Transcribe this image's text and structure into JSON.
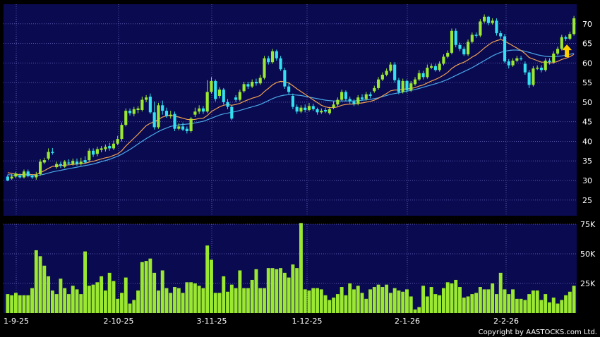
{
  "chart_data": [
    {
      "type": "candlestick",
      "ylim": [
        21,
        75
      ],
      "yticks": [
        25,
        30,
        35,
        40,
        45,
        50,
        55,
        60,
        65,
        70
      ],
      "grid": true,
      "x_labels": [
        "1-9-25",
        "2-10-25",
        "3-11-25",
        "1-12-25",
        "2-1-26",
        "2-2-26"
      ],
      "colors": {
        "up": "#9be830",
        "down": "#33e0f0",
        "ma_short": "#f0a050",
        "ma_long": "#4aa8e8",
        "background": "#0a0a50",
        "arrow": "#ffd000"
      },
      "candles": [
        [
          31,
          30,
          31.5,
          29.8
        ],
        [
          30.5,
          31,
          31.6,
          30.2
        ],
        [
          31,
          31.8,
          32.2,
          30.6
        ],
        [
          31.2,
          30.8,
          31.8,
          30.5
        ],
        [
          30.8,
          32.3,
          32.8,
          30.5
        ],
        [
          32.3,
          31.2,
          32.8,
          30.8
        ],
        [
          31.2,
          30.8,
          31.5,
          30.4
        ],
        [
          30.8,
          31.5,
          32.2,
          30.2
        ],
        [
          31.6,
          34.8,
          35.4,
          31.2
        ],
        [
          34.6,
          35.2,
          35.8,
          34.2
        ],
        [
          35.6,
          37.3,
          38.2,
          35.2
        ],
        [
          37.3,
          37.2,
          38.3,
          36.6
        ],
        [
          33.4,
          34.2,
          34.8,
          33.0
        ],
        [
          34.2,
          33.8,
          34.8,
          33.2
        ],
        [
          33.5,
          34.8,
          35.2,
          33.2
        ],
        [
          34.6,
          34.4,
          35.4,
          34.0
        ],
        [
          34.2,
          35.0,
          35.6,
          33.8
        ],
        [
          34.8,
          34.2,
          35.6,
          33.8
        ],
        [
          34.2,
          34.8,
          35.8,
          33.8
        ],
        [
          35.2,
          34.6,
          36.2,
          34.2
        ],
        [
          35.2,
          37.6,
          38.2,
          34.8
        ],
        [
          37.6,
          36.6,
          38.2,
          36.0
        ],
        [
          36.8,
          38.0,
          38.6,
          36.2
        ],
        [
          37.8,
          38.2,
          38.8,
          37.2
        ],
        [
          38.0,
          38.6,
          39.2,
          37.4
        ],
        [
          38.8,
          38.2,
          39.6,
          37.6
        ],
        [
          38.2,
          39.4,
          40.2,
          37.8
        ],
        [
          39.4,
          40.6,
          41.4,
          39.0
        ],
        [
          40.6,
          44.2,
          44.8,
          40.0
        ],
        [
          44.2,
          47.8,
          48.4,
          43.8
        ],
        [
          47.8,
          47.2,
          48.4,
          46.6
        ],
        [
          47.0,
          48.2,
          48.8,
          46.4
        ],
        [
          48.0,
          48.4,
          49.0,
          47.2
        ],
        [
          48.0,
          50.6,
          51.4,
          47.6
        ],
        [
          50.6,
          51.2,
          51.8,
          50.0
        ],
        [
          51.4,
          47.4,
          52.2,
          47.0
        ],
        [
          47.4,
          43.6,
          50.2,
          43.0
        ],
        [
          43.6,
          49.2,
          49.8,
          43.2
        ],
        [
          49.2,
          47.8,
          50.4,
          46.8
        ],
        [
          47.8,
          46.4,
          48.6,
          46.0
        ],
        [
          46.4,
          46.8,
          47.8,
          45.8
        ],
        [
          47.0,
          43.2,
          47.6,
          42.6
        ],
        [
          43.2,
          43.8,
          44.6,
          42.8
        ],
        [
          43.8,
          43.0,
          44.8,
          42.6
        ],
        [
          43.2,
          42.6,
          43.8,
          42.0
        ],
        [
          42.6,
          45.8,
          46.2,
          42.2
        ],
        [
          46.8,
          47.6,
          48.6,
          46.2
        ],
        [
          47.6,
          48.4,
          49.2,
          47.0
        ],
        [
          48.4,
          47.6,
          49.0,
          47.0
        ],
        [
          47.6,
          52.6,
          55.6,
          47.2
        ],
        [
          52.6,
          55.4,
          56.4,
          52.2
        ],
        [
          55.4,
          50.8,
          55.8,
          50.2
        ],
        [
          51.6,
          53.2,
          53.8,
          51.0
        ],
        [
          53.2,
          50.0,
          53.6,
          49.4
        ],
        [
          50.0,
          48.8,
          50.8,
          48.2
        ],
        [
          48.8,
          45.8,
          49.2,
          45.4
        ],
        [
          51.2,
          50.6,
          51.8,
          50.0
        ],
        [
          50.6,
          52.6,
          53.2,
          50.2
        ],
        [
          52.8,
          54.6,
          55.2,
          52.4
        ],
        [
          54.6,
          54.0,
          55.2,
          53.4
        ],
        [
          54.0,
          55.2,
          55.8,
          53.6
        ],
        [
          55.2,
          54.8,
          56.0,
          54.2
        ],
        [
          54.8,
          56.2,
          57.0,
          54.4
        ],
        [
          56.2,
          61.2,
          61.8,
          55.8
        ],
        [
          61.2,
          60.2,
          61.8,
          59.6
        ],
        [
          60.2,
          63.0,
          63.6,
          59.8
        ],
        [
          63.0,
          61.2,
          63.4,
          60.6
        ],
        [
          61.2,
          58.4,
          61.8,
          58.0
        ],
        [
          58.2,
          54.0,
          58.8,
          53.4
        ],
        [
          54.0,
          52.6,
          54.8,
          52.0
        ],
        [
          51.6,
          48.8,
          52.2,
          48.2
        ],
        [
          48.8,
          47.6,
          49.4,
          47.0
        ],
        [
          47.6,
          48.6,
          49.2,
          47.2
        ],
        [
          48.6,
          48.0,
          49.4,
          47.4
        ],
        [
          48.0,
          49.0,
          49.8,
          47.6
        ],
        [
          49.0,
          48.2,
          49.6,
          47.8
        ],
        [
          48.2,
          47.4,
          48.6,
          46.8
        ],
        [
          47.4,
          47.8,
          48.4,
          47.0
        ],
        [
          48.0,
          47.6,
          48.6,
          47.2
        ],
        [
          47.2,
          48.2,
          48.8,
          46.8
        ],
        [
          48.6,
          49.4,
          50.2,
          48.2
        ],
        [
          49.4,
          50.6,
          51.2,
          49.0
        ],
        [
          50.6,
          52.6,
          53.2,
          50.2
        ],
        [
          52.6,
          50.8,
          53.0,
          50.2
        ],
        [
          50.8,
          50.2,
          51.4,
          49.6
        ],
        [
          50.2,
          49.6,
          50.8,
          49.0
        ],
        [
          49.6,
          51.2,
          51.8,
          49.2
        ],
        [
          51.2,
          50.8,
          52.0,
          50.4
        ],
        [
          50.8,
          52.0,
          52.6,
          50.4
        ],
        [
          52.0,
          51.6,
          52.6,
          51.0
        ],
        [
          52.8,
          53.6,
          54.2,
          52.4
        ],
        [
          53.6,
          55.8,
          56.4,
          53.2
        ],
        [
          55.8,
          57.0,
          57.6,
          55.4
        ],
        [
          57.0,
          58.0,
          58.6,
          56.6
        ],
        [
          58.0,
          59.6,
          60.2,
          57.6
        ],
        [
          59.6,
          55.6,
          60.2,
          55.0
        ],
        [
          55.6,
          52.6,
          56.2,
          52.0
        ],
        [
          52.6,
          55.4,
          56.0,
          52.2
        ],
        [
          55.4,
          53.0,
          55.8,
          52.4
        ],
        [
          53.0,
          54.8,
          55.4,
          52.6
        ],
        [
          54.6,
          55.8,
          56.4,
          54.2
        ],
        [
          55.8,
          57.4,
          58.2,
          55.4
        ],
        [
          57.4,
          56.4,
          58.0,
          55.8
        ],
        [
          56.4,
          58.8,
          59.6,
          56.0
        ],
        [
          58.8,
          59.2,
          59.8,
          58.4
        ],
        [
          59.2,
          58.2,
          59.8,
          57.8
        ],
        [
          58.2,
          59.8,
          60.4,
          57.8
        ],
        [
          59.8,
          61.6,
          62.2,
          59.4
        ],
        [
          61.6,
          62.6,
          63.2,
          61.2
        ],
        [
          62.6,
          68.2,
          68.8,
          62.2
        ],
        [
          68.2,
          64.6,
          68.8,
          64.0
        ],
        [
          64.6,
          63.6,
          65.2,
          63.0
        ],
        [
          63.6,
          62.2,
          64.2,
          61.8
        ],
        [
          62.2,
          65.4,
          66.0,
          61.8
        ],
        [
          65.4,
          67.2,
          67.8,
          65.0
        ],
        [
          67.2,
          67.0,
          67.8,
          66.4
        ],
        [
          67.0,
          70.6,
          71.2,
          66.6
        ],
        [
          70.6,
          71.8,
          72.4,
          70.2
        ],
        [
          71.8,
          70.2,
          72.0,
          69.6
        ],
        [
          70.2,
          70.8,
          71.4,
          69.8
        ],
        [
          70.8,
          67.6,
          71.4,
          67.0
        ],
        [
          67.6,
          66.8,
          68.2,
          66.2
        ],
        [
          66.8,
          60.4,
          67.4,
          60.0
        ],
        [
          60.4,
          59.4,
          61.0,
          58.6
        ],
        [
          59.4,
          60.6,
          61.2,
          59.0
        ],
        [
          60.6,
          61.2,
          61.8,
          60.2
        ],
        [
          61.2,
          61.0,
          61.8,
          60.6
        ],
        [
          59.8,
          57.6,
          60.4,
          57.0
        ],
        [
          57.6,
          54.4,
          58.2,
          53.6
        ],
        [
          54.4,
          58.6,
          59.2,
          54.0
        ],
        [
          58.6,
          58.8,
          59.4,
          58.2
        ],
        [
          58.8,
          58.2,
          59.4,
          57.6
        ],
        [
          58.2,
          60.6,
          61.2,
          57.8
        ],
        [
          60.6,
          60.2,
          61.2,
          59.6
        ],
        [
          60.2,
          62.4,
          63.0,
          59.8
        ],
        [
          62.4,
          63.6,
          64.2,
          62.0
        ],
        [
          63.6,
          66.6,
          67.2,
          63.2
        ],
        [
          66.6,
          66.2,
          67.0,
          65.6
        ],
        [
          66.2,
          67.4,
          68.0,
          65.8
        ],
        [
          67.4,
          71.4,
          72.0,
          67.0
        ]
      ],
      "ma_short": [
        32,
        31.8,
        31.6,
        31.5,
        31.6,
        31.6,
        31.5,
        31.5,
        32.0,
        32.5,
        33.1,
        33.6,
        33.7,
        33.8,
        33.9,
        34.0,
        34.1,
        34.2,
        34.3,
        34.4,
        34.7,
        34.9,
        35.2,
        35.5,
        35.8,
        36.0,
        36.4,
        36.8,
        37.6,
        38.8,
        39.8,
        40.8,
        41.8,
        42.9,
        44.0,
        44.6,
        45.0,
        45.6,
        46.2,
        46.5,
        46.7,
        46.4,
        46.2,
        45.9,
        45.6,
        45.5,
        45.6,
        45.8,
        45.9,
        46.6,
        47.6,
        48.2,
        48.8,
        49.2,
        49.4,
        49.2,
        49.4,
        49.7,
        50.2,
        50.6,
        51.0,
        51.3,
        51.7,
        52.7,
        53.5,
        54.4,
        55.0,
        55.3,
        55.2,
        54.9,
        54.2,
        53.4,
        52.7,
        52.0,
        51.3,
        50.6,
        49.9,
        49.2,
        48.8,
        48.6,
        48.6,
        48.8,
        49.2,
        49.4,
        49.5,
        49.5,
        49.7,
        49.8,
        50.0,
        50.2,
        50.5,
        51.0,
        51.6,
        52.2,
        52.9,
        53.1,
        53.1,
        53.3,
        53.4,
        53.5,
        53.7,
        54.1,
        54.4,
        54.9,
        55.4,
        55.8,
        56.3,
        56.9,
        57.6,
        58.6,
        59.3,
        59.8,
        60.2,
        60.8,
        61.5,
        62.1,
        62.9,
        63.8,
        64.6,
        65.3,
        65.7,
        66.0,
        65.6,
        65.0,
        64.4,
        63.8,
        63.2,
        62.4,
        61.4,
        61.0,
        60.6,
        60.2,
        60.2,
        60.0,
        60.1,
        60.4,
        60.9,
        61.2,
        61.6,
        62.2
      ],
      "ma_long": [
        31.5,
        31.4,
        31.3,
        31.2,
        31.2,
        31.2,
        31.2,
        31.2,
        31.4,
        31.6,
        31.9,
        32.2,
        32.4,
        32.6,
        32.8,
        33.0,
        33.2,
        33.4,
        33.6,
        33.8,
        34.0,
        34.2,
        34.5,
        34.8,
        35.1,
        35.4,
        35.8,
        36.2,
        36.7,
        37.3,
        37.9,
        38.6,
        39.3,
        40.0,
        40.7,
        41.3,
        41.9,
        42.5,
        43.0,
        43.4,
        43.8,
        44.0,
        44.2,
        44.3,
        44.4,
        44.5,
        44.7,
        44.9,
        45.1,
        45.5,
        45.9,
        46.3,
        46.7,
        47.0,
        47.2,
        47.4,
        47.6,
        47.9,
        48.2,
        48.5,
        48.8,
        49.1,
        49.4,
        49.9,
        50.4,
        50.9,
        51.3,
        51.6,
        51.8,
        51.9,
        51.9,
        51.8,
        51.7,
        51.5,
        51.3,
        51.1,
        50.9,
        50.7,
        50.5,
        50.4,
        50.3,
        50.3,
        50.3,
        50.3,
        50.3,
        50.3,
        50.4,
        50.5,
        50.6,
        50.7,
        50.9,
        51.1,
        51.4,
        51.7,
        52.0,
        52.2,
        52.4,
        52.6,
        52.8,
        53.0,
        53.2,
        53.5,
        53.8,
        54.1,
        54.4,
        54.7,
        55.0,
        55.4,
        55.8,
        56.3,
        56.8,
        57.3,
        57.8,
        58.3,
        58.8,
        59.4,
        60.0,
        60.6,
        61.2,
        61.8,
        62.3,
        62.7,
        63.0,
        63.2,
        63.3,
        63.3,
        63.2,
        63.0,
        62.7,
        62.4,
        62.1,
        61.9,
        61.7,
        61.6,
        61.6,
        61.7,
        61.8,
        62.0,
        62.2,
        62.5
      ],
      "annotation": "up-arrow at last bar"
    },
    {
      "type": "bar",
      "ylim": [
        0,
        75
      ],
      "yticks": [
        "25K",
        "50K",
        "75K"
      ],
      "ytick_values": [
        25,
        50,
        75
      ],
      "unit": "K",
      "values": [
        16,
        15,
        17,
        15,
        15,
        15,
        21,
        53,
        48,
        40,
        31,
        19,
        16,
        29,
        21,
        16,
        23,
        20,
        16,
        52,
        23,
        24,
        26,
        31,
        19,
        34,
        27,
        12,
        17,
        30,
        8,
        11,
        19,
        43,
        44,
        46,
        34,
        19,
        36,
        21,
        17,
        22,
        21,
        17,
        26,
        26,
        25,
        23,
        21,
        57,
        45,
        17,
        17,
        31,
        18,
        24,
        21,
        36,
        21,
        21,
        28,
        37,
        21,
        21,
        38,
        38,
        37,
        38,
        34,
        30,
        41,
        38,
        76,
        20,
        19,
        21,
        21,
        20,
        15,
        11,
        13,
        16,
        22,
        15,
        25,
        20,
        23,
        17,
        12,
        20,
        22,
        24,
        22,
        24,
        17,
        21,
        19,
        18,
        20,
        14,
        3,
        5,
        23,
        14,
        22,
        16,
        15,
        21,
        26,
        25,
        28,
        22,
        13,
        14,
        16,
        17,
        22,
        20,
        20,
        25,
        16,
        34,
        20,
        16,
        20,
        12,
        12,
        11,
        16,
        19,
        19,
        11,
        16,
        9,
        13,
        8,
        11,
        15,
        18,
        23
      ]
    }
  ],
  "x_labels": [
    "1-9-25",
    "2-10-25",
    "3-11-25",
    "1-12-25",
    "2-1-26",
    "2-2-26"
  ],
  "copyright": "Copyright by AASTOCKS.com Ltd."
}
